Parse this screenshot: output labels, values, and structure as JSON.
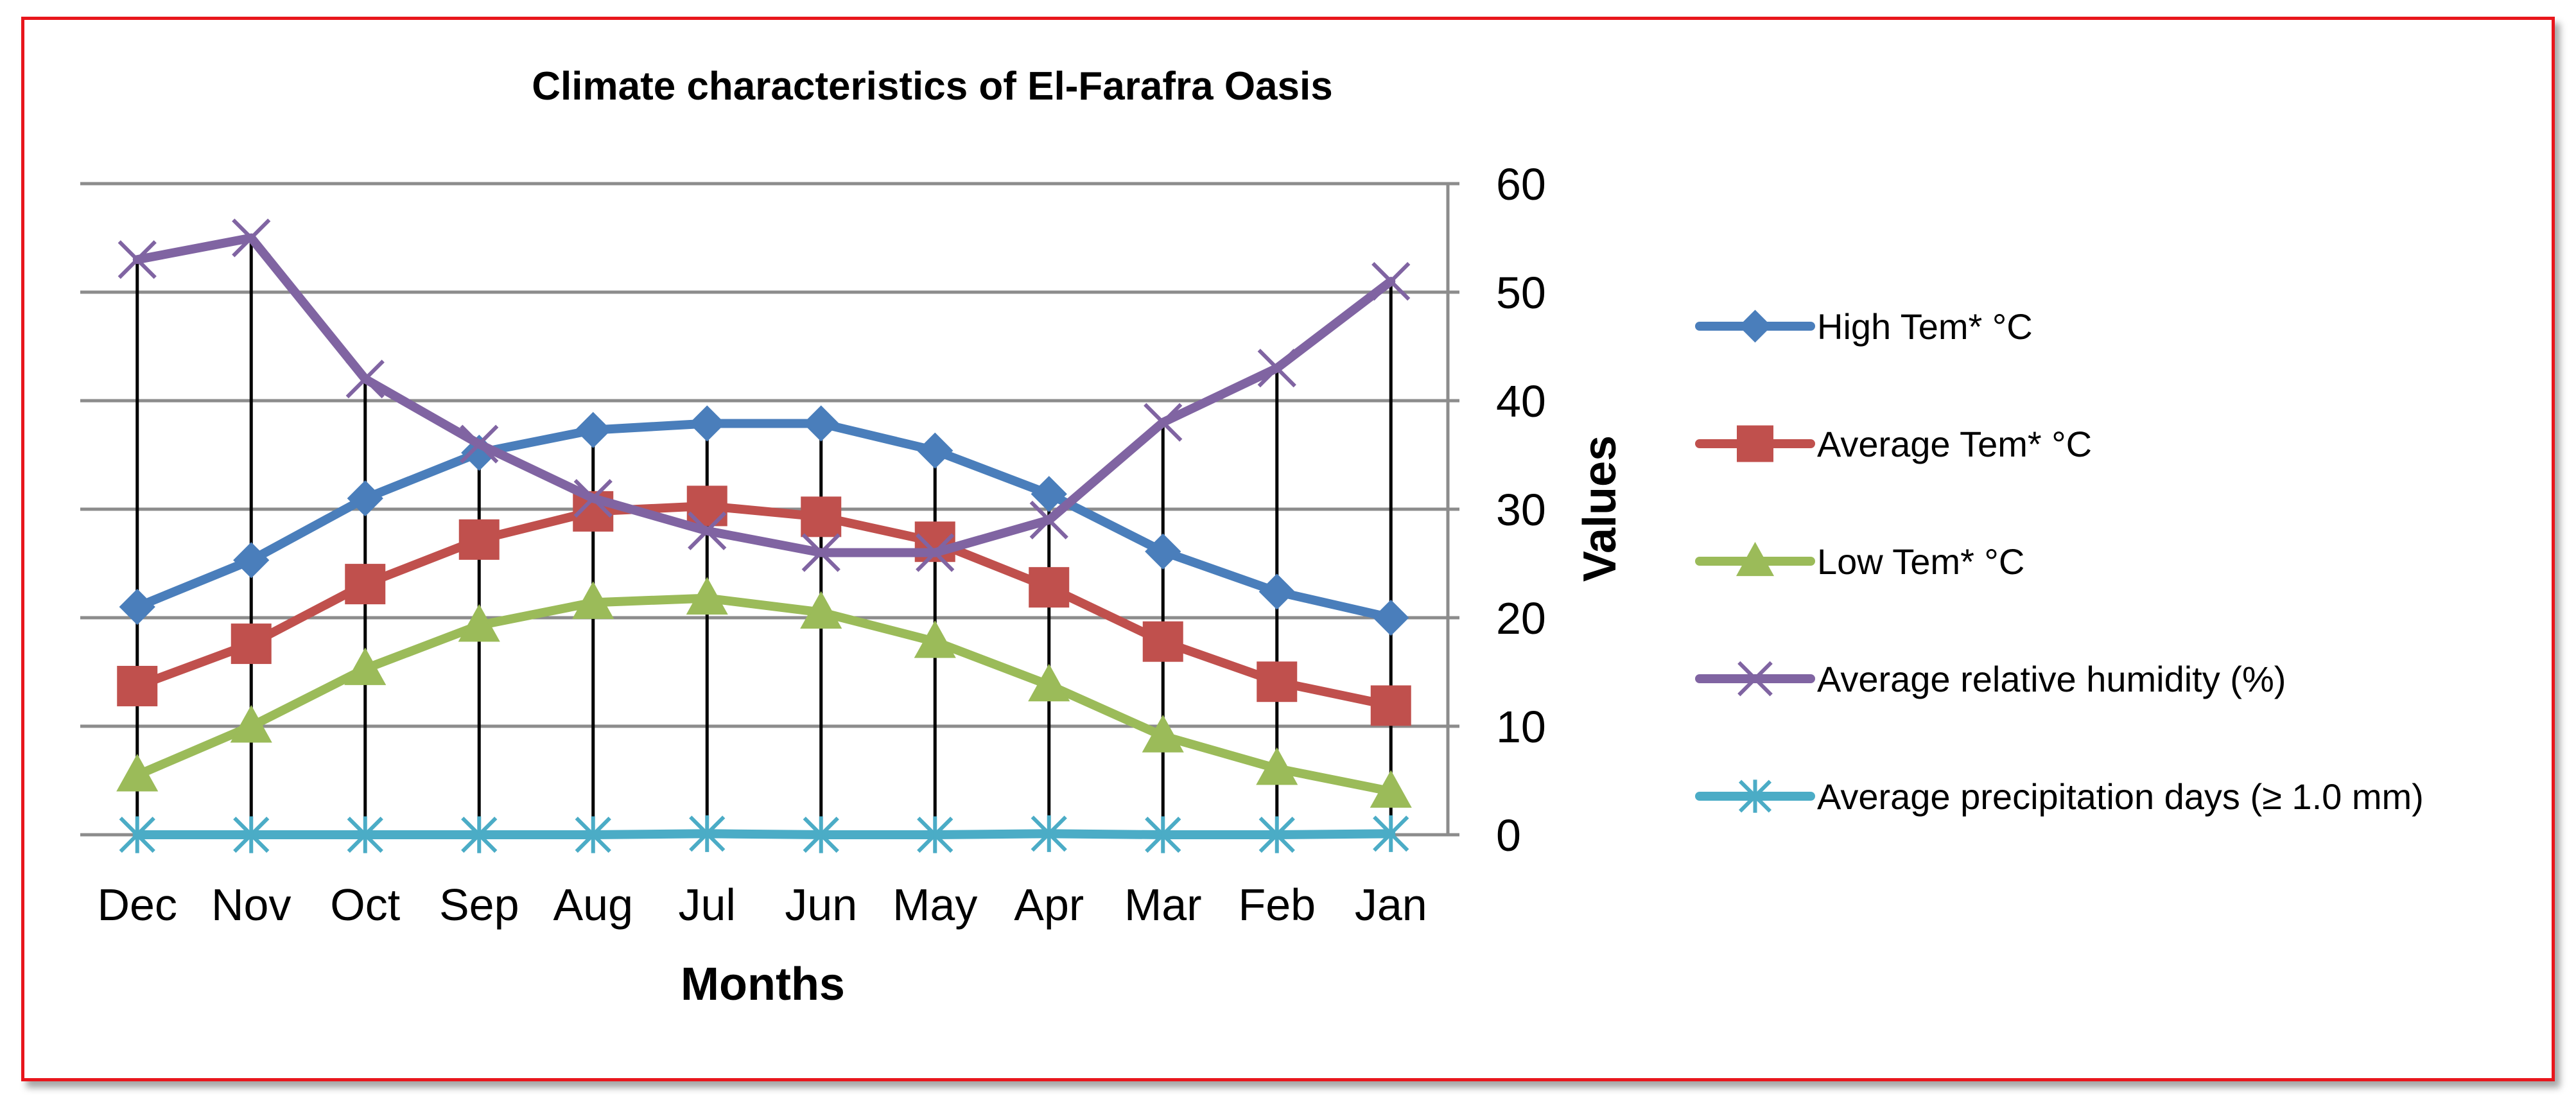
{
  "chart_data": {
    "type": "line",
    "title": "Climate characteristics of El-Farafra Oasis",
    "xlabel": "Months",
    "ylabel": "Values",
    "categories": [
      "Dec",
      "Nov",
      "Oct",
      "Sep",
      "Aug",
      "Jul",
      "Jun",
      "May",
      "Apr",
      "Mar",
      "Feb",
      "Jan"
    ],
    "ylim": [
      0,
      60
    ],
    "yticks": [
      0,
      10,
      20,
      30,
      40,
      50,
      60
    ],
    "y_axis_position": "right",
    "grid": true,
    "drop_lines": true,
    "legend_position": "right",
    "series": [
      {
        "name": "High Tem* °C",
        "color": "#4a7ebb",
        "marker": "diamond",
        "values": [
          21,
          25.3,
          31,
          35.2,
          37.3,
          37.9,
          37.9,
          35.4,
          31.4,
          26.1,
          22.4,
          20
        ]
      },
      {
        "name": "Average Tem* °C",
        "color": "#c0504d",
        "marker": "square",
        "values": [
          13.7,
          17.6,
          23.1,
          27.2,
          29.8,
          30.3,
          29.3,
          27,
          22.8,
          17.8,
          14.1,
          11.9
        ]
      },
      {
        "name": "Low  Tem* °C",
        "color": "#9bbb59",
        "marker": "triangle",
        "values": [
          5.5,
          10,
          15.3,
          19.3,
          21.4,
          21.8,
          20.5,
          17.8,
          13.8,
          9.1,
          6.1,
          4
        ]
      },
      {
        "name": "Average relative humidity (%)",
        "color": "#8064a2",
        "marker": "x",
        "values": [
          53,
          55,
          42,
          36,
          31,
          28,
          26,
          26,
          29,
          38,
          43,
          51
        ]
      },
      {
        "name": "Average precipitation days (≥ 1.0 mm)",
        "color": "#4bacc6",
        "marker": "star",
        "values": [
          0,
          0,
          0,
          0,
          0,
          0.1,
          0,
          0,
          0.1,
          0,
          0,
          0.1
        ]
      }
    ]
  }
}
